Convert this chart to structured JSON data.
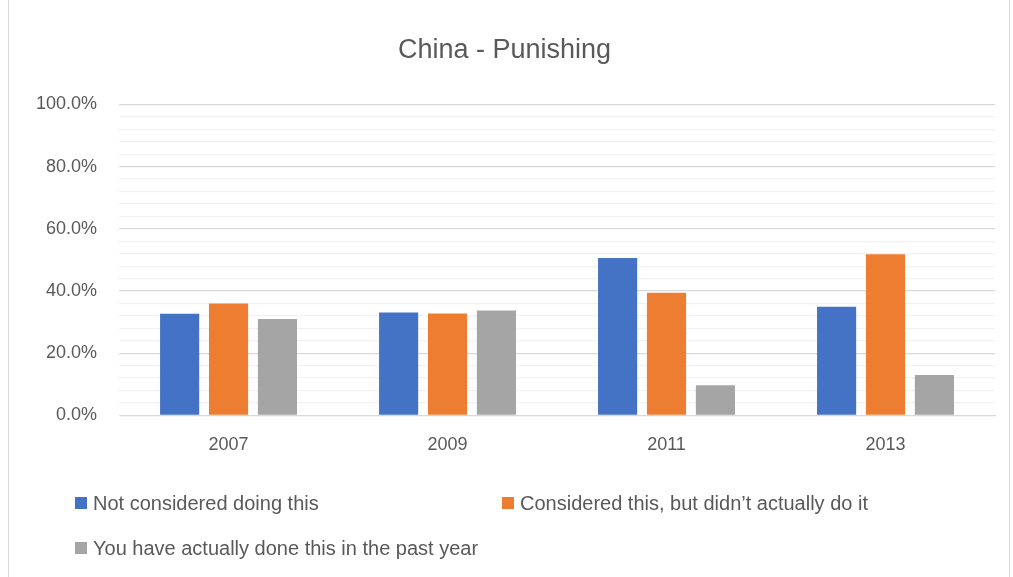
{
  "chart_data": {
    "type": "bar",
    "title": "China - Punishing",
    "categories": [
      "2007",
      "2009",
      "2011",
      "2013"
    ],
    "series": [
      {
        "name": "Not considered doing this",
        "color": "#4472c4",
        "values": [
          32.7,
          33.1,
          50.6,
          34.9
        ]
      },
      {
        "name": "Considered this, but didn’t actually do it",
        "color": "#ed7d31",
        "values": [
          36.0,
          32.8,
          39.4,
          51.8
        ]
      },
      {
        "name": "You have actually done this in the past year",
        "color": "#a5a5a5",
        "values": [
          31.0,
          33.7,
          9.7,
          13.0
        ]
      }
    ],
    "ylim": [
      0,
      100
    ],
    "yticks": [
      {
        "value": 0,
        "label": "0.0%"
      },
      {
        "value": 4,
        "label": null
      },
      {
        "value": 8,
        "label": null
      },
      {
        "value": 12,
        "label": null
      },
      {
        "value": 16,
        "label": null
      },
      {
        "value": 20,
        "label": "20.0%"
      },
      {
        "value": 24,
        "label": null
      },
      {
        "value": 28,
        "label": null
      },
      {
        "value": 32,
        "label": null
      },
      {
        "value": 36,
        "label": null
      },
      {
        "value": 40,
        "label": "40.0%"
      },
      {
        "value": 44,
        "label": null
      },
      {
        "value": 48,
        "label": null
      },
      {
        "value": 52,
        "label": null
      },
      {
        "value": 56,
        "label": null
      },
      {
        "value": 60,
        "label": "60.0%"
      },
      {
        "value": 64,
        "label": null
      },
      {
        "value": 68,
        "label": null
      },
      {
        "value": 72,
        "label": null
      },
      {
        "value": 76,
        "label": null
      },
      {
        "value": 80,
        "label": "80.0%"
      },
      {
        "value": 84,
        "label": null
      },
      {
        "value": 88,
        "label": null
      },
      {
        "value": 92,
        "label": null
      },
      {
        "value": 96,
        "label": null
      },
      {
        "value": 100,
        "label": "100.0%"
      }
    ],
    "grid": "y",
    "legend": "bottom"
  }
}
